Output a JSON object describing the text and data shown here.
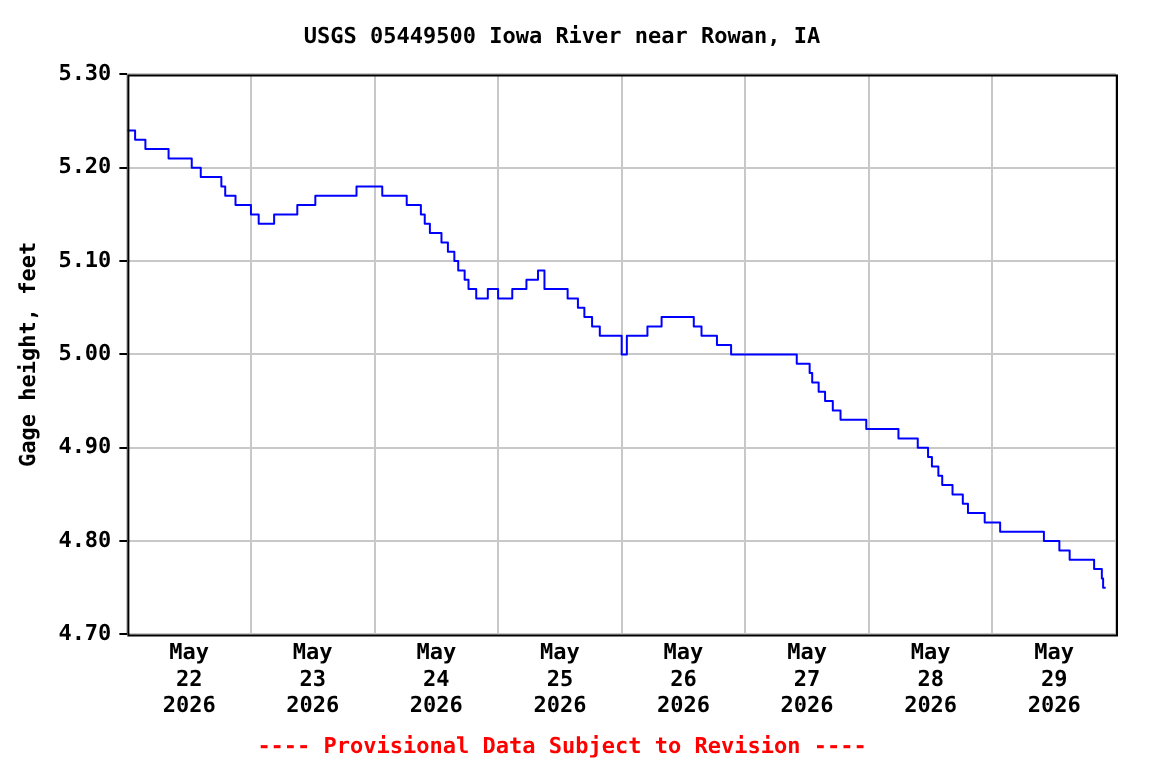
{
  "chart_data": {
    "type": "step",
    "title": "USGS 05449500 Iowa River near Rowan, IA",
    "ylabel": "Gage height, feet",
    "annotations": [
      "---- Provisional Data Subject to Revision ----"
    ],
    "x": [
      "2026-05-22T00:00",
      "2026-05-22T01:30",
      "2026-05-22T03:30",
      "2026-05-22T08:00",
      "2026-05-22T12:30",
      "2026-05-22T14:15",
      "2026-05-22T18:15",
      "2026-05-22T19:00",
      "2026-05-22T21:00",
      "2026-05-23T00:00",
      "2026-05-23T01:30",
      "2026-05-23T04:30",
      "2026-05-23T09:00",
      "2026-05-23T12:30",
      "2026-05-23T20:30",
      "2026-05-24T01:30",
      "2026-05-24T06:15",
      "2026-05-24T09:00",
      "2026-05-24T09:45",
      "2026-05-24T10:45",
      "2026-05-24T13:00",
      "2026-05-24T14:15",
      "2026-05-24T15:30",
      "2026-05-24T16:15",
      "2026-05-24T17:30",
      "2026-05-24T18:15",
      "2026-05-24T19:45",
      "2026-05-24T22:00",
      "2026-05-25T00:00",
      "2026-05-25T02:45",
      "2026-05-25T05:30",
      "2026-05-25T07:45",
      "2026-05-25T09:00",
      "2026-05-25T13:30",
      "2026-05-25T15:30",
      "2026-05-25T16:45",
      "2026-05-25T18:15",
      "2026-05-25T19:45",
      "2026-05-26T00:00",
      "2026-05-26T01:00",
      "2026-05-26T05:00",
      "2026-05-26T07:45",
      "2026-05-26T14:00",
      "2026-05-26T15:30",
      "2026-05-26T18:30",
      "2026-05-26T21:15",
      "2026-05-27T10:00",
      "2026-05-27T12:30",
      "2026-05-27T13:00",
      "2026-05-27T14:15",
      "2026-05-27T15:30",
      "2026-05-27T17:00",
      "2026-05-27T18:30",
      "2026-05-27T23:30",
      "2026-05-28T05:45",
      "2026-05-28T09:30",
      "2026-05-28T11:30",
      "2026-05-28T12:15",
      "2026-05-28T13:30",
      "2026-05-28T14:15",
      "2026-05-28T16:15",
      "2026-05-28T18:15",
      "2026-05-28T19:15",
      "2026-05-28T22:30",
      "2026-05-29T01:30",
      "2026-05-29T10:00",
      "2026-05-29T13:00",
      "2026-05-29T15:00",
      "2026-05-29T19:45",
      "2026-05-29T21:15",
      "2026-05-29T21:30",
      "2026-05-29T22:00"
    ],
    "series": [
      {
        "color": "#0000ff",
        "values": [
          5.24,
          5.23,
          5.22,
          5.21,
          5.2,
          5.19,
          5.18,
          5.17,
          5.16,
          5.15,
          5.14,
          5.15,
          5.16,
          5.17,
          5.18,
          5.17,
          5.16,
          5.15,
          5.14,
          5.13,
          5.12,
          5.11,
          5.1,
          5.09,
          5.08,
          5.07,
          5.06,
          5.07,
          5.06,
          5.07,
          5.08,
          5.09,
          5.07,
          5.06,
          5.05,
          5.04,
          5.03,
          5.02,
          5.0,
          5.02,
          5.03,
          5.04,
          5.03,
          5.02,
          5.01,
          5.0,
          4.99,
          4.98,
          4.97,
          4.96,
          4.95,
          4.94,
          4.93,
          4.92,
          4.91,
          4.9,
          4.89,
          4.88,
          4.87,
          4.86,
          4.85,
          4.84,
          4.83,
          4.82,
          4.81,
          4.8,
          4.79,
          4.78,
          4.77,
          4.76,
          4.75,
          4.75
        ]
      }
    ],
    "xlim": [
      "2026-05-22T00:00",
      "2026-05-30T00:00"
    ],
    "xticks": [
      {
        "value": "2026-05-22T00:00",
        "label": null
      },
      {
        "value": "2026-05-22T12:00",
        "label": "May\n22\n2026"
      },
      {
        "value": "2026-05-23T00:00",
        "label": null
      },
      {
        "value": "2026-05-23T12:00",
        "label": "May\n23\n2026"
      },
      {
        "value": "2026-05-24T00:00",
        "label": null
      },
      {
        "value": "2026-05-24T12:00",
        "label": "May\n24\n2026"
      },
      {
        "value": "2026-05-25T00:00",
        "label": null
      },
      {
        "value": "2026-05-25T12:00",
        "label": "May\n25\n2026"
      },
      {
        "value": "2026-05-26T00:00",
        "label": null
      },
      {
        "value": "2026-05-26T12:00",
        "label": "May\n26\n2026"
      },
      {
        "value": "2026-05-27T00:00",
        "label": null
      },
      {
        "value": "2026-05-27T12:00",
        "label": "May\n27\n2026"
      },
      {
        "value": "2026-05-28T00:00",
        "label": null
      },
      {
        "value": "2026-05-28T12:00",
        "label": "May\n28\n2026"
      },
      {
        "value": "2026-05-29T00:00",
        "label": null
      },
      {
        "value": "2026-05-29T12:00",
        "label": "May\n29\n2026"
      },
      {
        "value": "2026-05-30T00:00",
        "label": null
      }
    ],
    "ylim": [
      4.7,
      5.3
    ],
    "yticks": [
      {
        "value": 4.7,
        "label": "4.70"
      },
      {
        "value": 4.8,
        "label": "4.80"
      },
      {
        "value": 4.9,
        "label": "4.90"
      },
      {
        "value": 5.0,
        "label": "5.00"
      },
      {
        "value": 5.1,
        "label": "5.10"
      },
      {
        "value": 5.2,
        "label": "5.20"
      },
      {
        "value": 5.3,
        "label": "5.30"
      }
    ],
    "grid": true,
    "legend": false,
    "marker": "none",
    "line_style": "solid"
  }
}
